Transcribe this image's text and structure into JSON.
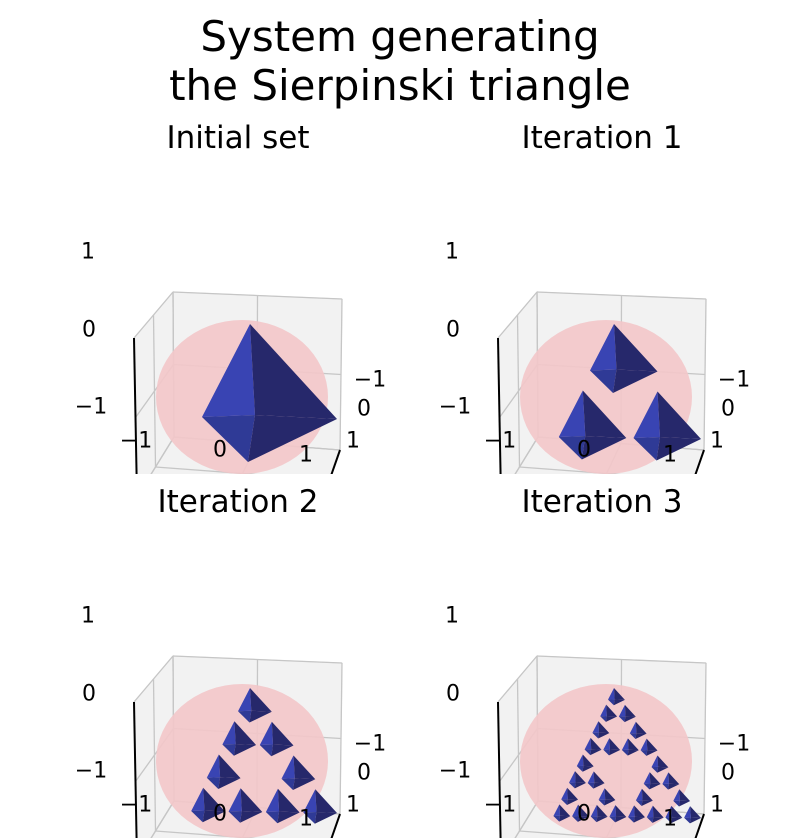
{
  "figure": {
    "title_line1": "System generating",
    "title_line2": "the Sierpinski triangle"
  },
  "colors": {
    "sphere": "#f3c7c9",
    "solid_dark": "#26286b",
    "solid_mid": "#2f3a96",
    "solid_light": "#3944b3",
    "pane": "#f2f2f2",
    "grid": "#c6c6c6",
    "axis": "#000000"
  },
  "panels": [
    {
      "title": "Initial set",
      "iteration": 0,
      "ticks": {
        "x": [
          "−1",
          "0",
          "1"
        ],
        "y": [
          "−1",
          "0",
          "1"
        ],
        "z": [
          "−1",
          "0",
          "1"
        ]
      }
    },
    {
      "title": "Iteration 1",
      "iteration": 1,
      "ticks": {
        "x": [
          "−1",
          "0",
          "1"
        ],
        "y": [
          "−1",
          "0",
          "1"
        ],
        "z": [
          "−1",
          "0",
          "1"
        ]
      }
    },
    {
      "title": "Iteration 2",
      "iteration": 2,
      "ticks": {
        "x": [
          "−1",
          "0",
          "1"
        ],
        "y": [
          "−1",
          "0",
          "1"
        ],
        "z": [
          "−1",
          "0",
          "1"
        ]
      }
    },
    {
      "title": "Iteration 3",
      "iteration": 3,
      "ticks": {
        "x": [
          "−1",
          "0",
          "1"
        ],
        "y": [
          "−1",
          "0",
          "1"
        ],
        "z": [
          "−1",
          "0",
          "1"
        ]
      }
    }
  ]
}
